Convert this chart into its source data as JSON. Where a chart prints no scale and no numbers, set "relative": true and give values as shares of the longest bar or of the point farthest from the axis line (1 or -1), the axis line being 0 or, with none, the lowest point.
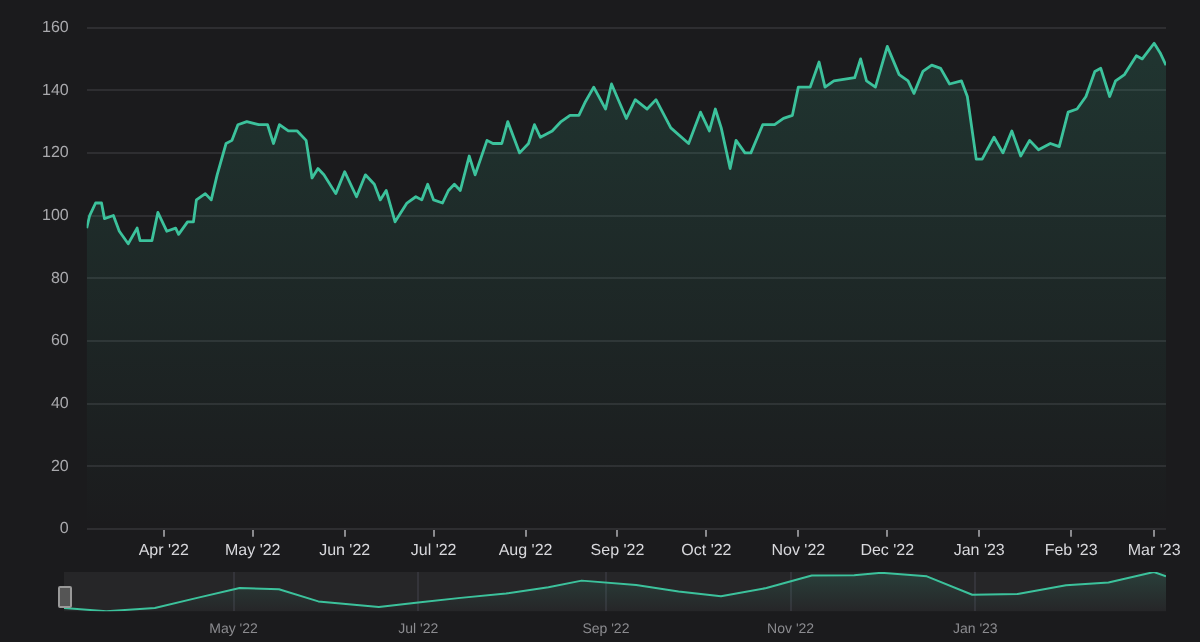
{
  "chart_data": [
    {
      "type": "area",
      "color": "#3cc29c",
      "grid": "y",
      "legend": false,
      "xlim": [
        "2022-03-06",
        "2023-03-05"
      ],
      "xticks": [
        {
          "value": "2022-04-01",
          "label": "Apr '22"
        },
        {
          "value": "2022-05-01",
          "label": "May '22"
        },
        {
          "value": "2022-06-01",
          "label": "Jun '22"
        },
        {
          "value": "2022-07-01",
          "label": "Jul '22"
        },
        {
          "value": "2022-08-01",
          "label": "Aug '22"
        },
        {
          "value": "2022-09-01",
          "label": "Sep '22"
        },
        {
          "value": "2022-10-01",
          "label": "Oct '22"
        },
        {
          "value": "2022-11-01",
          "label": "Nov '22"
        },
        {
          "value": "2022-12-01",
          "label": "Dec '22"
        },
        {
          "value": "2023-01-01",
          "label": "Jan '23"
        },
        {
          "value": "2023-02-01",
          "label": "Feb '23"
        },
        {
          "value": "2023-03-01",
          "label": "Mar '23"
        }
      ],
      "ylim": [
        0,
        160
      ],
      "yticks": [
        0,
        20,
        40,
        60,
        80,
        100,
        120,
        140,
        160
      ],
      "x": [
        "2022-03-06",
        "2022-03-07",
        "2022-03-09",
        "2022-03-11",
        "2022-03-12",
        "2022-03-15",
        "2022-03-17",
        "2022-03-20",
        "2022-03-23",
        "2022-03-24",
        "2022-03-28",
        "2022-03-30",
        "2022-04-02",
        "2022-04-05",
        "2022-04-06",
        "2022-04-09",
        "2022-04-11",
        "2022-04-12",
        "2022-04-15",
        "2022-04-17",
        "2022-04-19",
        "2022-04-22",
        "2022-04-24",
        "2022-04-26",
        "2022-04-29",
        "2022-05-03",
        "2022-05-06",
        "2022-05-08",
        "2022-05-10",
        "2022-05-13",
        "2022-05-16",
        "2022-05-19",
        "2022-05-21",
        "2022-05-23",
        "2022-05-25",
        "2022-05-29",
        "2022-06-01",
        "2022-06-05",
        "2022-06-08",
        "2022-06-11",
        "2022-06-13",
        "2022-06-15",
        "2022-06-18",
        "2022-06-22",
        "2022-06-25",
        "2022-06-27",
        "2022-06-29",
        "2022-07-01",
        "2022-07-04",
        "2022-07-06",
        "2022-07-08",
        "2022-07-10",
        "2022-07-13",
        "2022-07-15",
        "2022-07-19",
        "2022-07-21",
        "2022-07-24",
        "2022-07-26",
        "2022-07-30",
        "2022-08-02",
        "2022-08-04",
        "2022-08-06",
        "2022-08-10",
        "2022-08-13",
        "2022-08-16",
        "2022-08-19",
        "2022-08-21",
        "2022-08-24",
        "2022-08-28",
        "2022-08-30",
        "2022-09-04",
        "2022-09-07",
        "2022-09-11",
        "2022-09-14",
        "2022-09-19",
        "2022-09-25",
        "2022-09-29",
        "2022-10-02",
        "2022-10-04",
        "2022-10-06",
        "2022-10-09",
        "2022-10-11",
        "2022-10-14",
        "2022-10-16",
        "2022-10-20",
        "2022-10-24",
        "2022-10-27",
        "2022-10-30",
        "2022-11-01",
        "2022-11-05",
        "2022-11-08",
        "2022-11-10",
        "2022-11-13",
        "2022-11-20",
        "2022-11-22",
        "2022-11-24",
        "2022-11-27",
        "2022-12-01",
        "2022-12-05",
        "2022-12-08",
        "2022-12-10",
        "2022-12-13",
        "2022-12-16",
        "2022-12-19",
        "2022-12-22",
        "2022-12-26",
        "2022-12-28",
        "2022-12-31",
        "2023-01-02",
        "2023-01-06",
        "2023-01-09",
        "2023-01-12",
        "2023-01-15",
        "2023-01-18",
        "2023-01-21",
        "2023-01-25",
        "2023-01-28",
        "2023-01-31",
        "2023-02-03",
        "2023-02-06",
        "2023-02-09",
        "2023-02-11",
        "2023-02-14",
        "2023-02-16",
        "2023-02-19",
        "2023-02-23",
        "2023-02-25",
        "2023-03-01",
        "2023-03-03",
        "2023-03-05"
      ],
      "values": [
        96,
        100,
        104,
        104,
        99,
        100,
        95,
        91,
        96,
        92,
        92,
        101,
        95,
        96,
        94,
        98,
        98,
        105,
        107,
        105,
        113,
        123,
        124,
        129,
        130,
        129,
        129,
        123,
        129,
        127,
        127,
        124,
        112,
        115,
        113,
        107,
        114,
        106,
        113,
        110,
        105,
        108,
        98,
        104,
        106,
        105,
        110,
        105,
        104,
        108,
        110,
        108,
        119,
        113,
        124,
        123,
        123,
        130,
        120,
        123,
        129,
        125,
        127,
        130,
        132,
        132,
        136,
        141,
        134,
        142,
        131,
        137,
        134,
        137,
        128,
        123,
        133,
        127,
        134,
        128,
        115,
        124,
        120,
        120,
        129,
        129,
        131,
        132,
        141,
        141,
        149,
        141,
        143,
        144,
        150,
        143,
        141,
        154,
        145,
        143,
        139,
        146,
        148,
        147,
        142,
        143,
        138,
        118,
        118,
        125,
        120,
        127,
        119,
        124,
        121,
        123,
        122,
        133,
        134,
        138,
        146,
        147,
        138,
        143,
        145,
        151,
        150,
        155,
        152,
        148
      ]
    },
    {
      "type": "area",
      "color": "#3cc29c",
      "relative": true,
      "grid": "x",
      "tick_labels": "x",
      "legend": false,
      "xlim": [
        "2022-03-06",
        "2023-03-05"
      ],
      "xticks": [
        {
          "value": "2022-05-01",
          "label": "May '22"
        },
        {
          "value": "2022-07-01",
          "label": "Jul '22"
        },
        {
          "value": "2022-09-01",
          "label": "Sep '22"
        },
        {
          "value": "2022-11-01",
          "label": "Nov '22"
        },
        {
          "value": "2023-01-01",
          "label": "Jan '23"
        }
      ],
      "x": [
        "2022-03-06",
        "2022-03-20",
        "2022-04-05",
        "2022-04-19",
        "2022-05-03",
        "2022-05-16",
        "2022-05-29",
        "2022-06-18",
        "2022-07-01",
        "2022-07-15",
        "2022-07-30",
        "2022-08-13",
        "2022-08-24",
        "2022-09-11",
        "2022-09-25",
        "2022-10-09",
        "2022-10-24",
        "2022-11-08",
        "2022-11-22",
        "2022-12-01",
        "2022-12-16",
        "2022-12-31",
        "2023-01-15",
        "2023-01-31",
        "2023-02-14",
        "2023-03-01",
        "2023-03-05"
      ],
      "values": [
        0.08,
        0,
        0.08,
        0.34,
        0.59,
        0.56,
        0.25,
        0.11,
        0.22,
        0.34,
        0.45,
        0.61,
        0.78,
        0.67,
        0.5,
        0.38,
        0.59,
        0.91,
        0.92,
        0.98,
        0.89,
        0.42,
        0.44,
        0.66,
        0.73,
        1,
        0.89
      ]
    }
  ]
}
